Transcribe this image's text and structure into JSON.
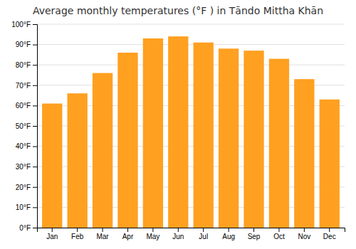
{
  "chart_data": {
    "type": "bar",
    "title": "Average monthly temperatures (°F ) in Tāndo Mittha Khān",
    "categories": [
      "Jan",
      "Feb",
      "Mar",
      "Apr",
      "May",
      "Jun",
      "Jul",
      "Aug",
      "Sep",
      "Oct",
      "Nov",
      "Dec"
    ],
    "values": [
      61,
      66,
      76,
      86,
      93,
      94,
      91,
      88,
      87,
      83,
      73,
      63
    ],
    "color": "#FFA020",
    "ylim": [
      0,
      100
    ],
    "yticks": [
      {
        "value": 0,
        "label": "0°F"
      },
      {
        "value": 10,
        "label": "10°F"
      },
      {
        "value": 20,
        "label": "20°F"
      },
      {
        "value": 30,
        "label": "30°F"
      },
      {
        "value": 40,
        "label": "40°F"
      },
      {
        "value": 50,
        "label": "50°F"
      },
      {
        "value": 60,
        "label": "60°F"
      },
      {
        "value": 70,
        "label": "70°F"
      },
      {
        "value": 80,
        "label": "80°F"
      },
      {
        "value": 90,
        "label": "90°F"
      },
      {
        "value": 100,
        "label": "100°F"
      }
    ],
    "grid": true
  }
}
